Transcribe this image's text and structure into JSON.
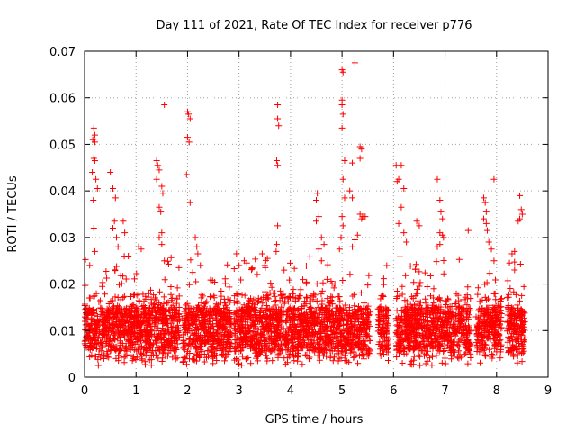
{
  "chart_data": {
    "type": "scatter",
    "title": "Day 111 of 2021, Rate Of TEC Index for receiver p776",
    "xlabel": "GPS time / hours",
    "ylabel": "ROTI / TECUs",
    "xlim": [
      0,
      9
    ],
    "ylim": [
      0,
      0.07
    ],
    "xticks": [
      0,
      1,
      2,
      3,
      4,
      5,
      6,
      7,
      8,
      9
    ],
    "yticks": [
      0,
      0.01,
      0.02,
      0.03,
      0.04,
      0.05,
      0.06,
      0.07
    ],
    "xtick_labels": [
      "0",
      "1",
      "2",
      "3",
      "4",
      "5",
      "6",
      "7",
      "8",
      "9"
    ],
    "ytick_labels": [
      "0",
      "0.01",
      "0.02",
      "0.03",
      "0.04",
      "0.05",
      "0.06",
      "0.07"
    ],
    "grid": true,
    "marker": "+",
    "series": [
      {
        "name": "ROTI",
        "color": "#ff0000",
        "segments": [
          [
            0.0,
            1.85
          ],
          [
            1.9,
            2.85
          ],
          [
            2.9,
            5.55
          ],
          [
            5.7,
            5.9
          ],
          [
            6.05,
            7.5
          ],
          [
            7.6,
            8.1
          ],
          [
            8.2,
            8.55
          ]
        ],
        "outliers": [
          [
            0.18,
            0.0535
          ],
          [
            0.2,
            0.052
          ],
          [
            0.16,
            0.051
          ],
          [
            0.2,
            0.0505
          ],
          [
            0.18,
            0.047
          ],
          [
            0.2,
            0.0465
          ],
          [
            0.15,
            0.044
          ],
          [
            0.22,
            0.0425
          ],
          [
            0.25,
            0.0405
          ],
          [
            0.17,
            0.038
          ],
          [
            0.18,
            0.032
          ],
          [
            0.2,
            0.027
          ],
          [
            0.1,
            0.024
          ],
          [
            0.5,
            0.044
          ],
          [
            0.55,
            0.0405
          ],
          [
            0.6,
            0.0385
          ],
          [
            0.58,
            0.0335
          ],
          [
            0.55,
            0.032
          ],
          [
            0.62,
            0.03
          ],
          [
            0.65,
            0.028
          ],
          [
            0.75,
            0.0335
          ],
          [
            0.78,
            0.031
          ],
          [
            0.85,
            0.026
          ],
          [
            1.05,
            0.028
          ],
          [
            1.1,
            0.0275
          ],
          [
            1.4,
            0.0465
          ],
          [
            1.42,
            0.0455
          ],
          [
            1.45,
            0.0445
          ],
          [
            1.4,
            0.0425
          ],
          [
            1.5,
            0.041
          ],
          [
            1.52,
            0.0395
          ],
          [
            1.45,
            0.0365
          ],
          [
            1.48,
            0.0355
          ],
          [
            1.5,
            0.031
          ],
          [
            1.45,
            0.03
          ],
          [
            1.55,
            0.0585
          ],
          [
            1.5,
            0.0285
          ],
          [
            1.55,
            0.025
          ],
          [
            2.0,
            0.057
          ],
          [
            2.02,
            0.0565
          ],
          [
            2.05,
            0.0555
          ],
          [
            2.0,
            0.0515
          ],
          [
            2.03,
            0.0505
          ],
          [
            1.98,
            0.0435
          ],
          [
            2.05,
            0.0375
          ],
          [
            2.15,
            0.03
          ],
          [
            2.18,
            0.028
          ],
          [
            2.2,
            0.0265
          ],
          [
            2.25,
            0.024
          ],
          [
            2.1,
            0.0225
          ],
          [
            2.95,
            0.0265
          ],
          [
            3.1,
            0.025
          ],
          [
            3.15,
            0.0245
          ],
          [
            3.0,
            0.024
          ],
          [
            3.45,
            0.0265
          ],
          [
            3.55,
            0.0255
          ],
          [
            3.5,
            0.024
          ],
          [
            3.75,
            0.0585
          ],
          [
            3.75,
            0.0555
          ],
          [
            3.77,
            0.054
          ],
          [
            3.73,
            0.0465
          ],
          [
            3.75,
            0.0455
          ],
          [
            3.75,
            0.0325
          ],
          [
            3.73,
            0.0285
          ],
          [
            3.72,
            0.027
          ],
          [
            4.5,
            0.038
          ],
          [
            4.52,
            0.0395
          ],
          [
            4.55,
            0.0345
          ],
          [
            4.5,
            0.0335
          ],
          [
            4.6,
            0.03
          ],
          [
            4.65,
            0.0285
          ],
          [
            4.55,
            0.0275
          ],
          [
            4.6,
            0.025
          ],
          [
            4.95,
            0.0275
          ],
          [
            5.0,
            0.066
          ],
          [
            5.02,
            0.0655
          ],
          [
            5.0,
            0.0595
          ],
          [
            5.0,
            0.0585
          ],
          [
            5.02,
            0.0565
          ],
          [
            5.0,
            0.0535
          ],
          [
            5.05,
            0.0465
          ],
          [
            5.02,
            0.0425
          ],
          [
            5.05,
            0.0385
          ],
          [
            5.0,
            0.0345
          ],
          [
            5.02,
            0.0325
          ],
          [
            4.98,
            0.03
          ],
          [
            5.25,
            0.0675
          ],
          [
            5.2,
            0.046
          ],
          [
            5.15,
            0.04
          ],
          [
            5.2,
            0.0385
          ],
          [
            5.35,
            0.0495
          ],
          [
            5.38,
            0.049
          ],
          [
            5.35,
            0.047
          ],
          [
            5.35,
            0.035
          ],
          [
            5.4,
            0.0345
          ],
          [
            5.45,
            0.0345
          ],
          [
            5.38,
            0.034
          ],
          [
            5.3,
            0.0305
          ],
          [
            5.25,
            0.0295
          ],
          [
            5.2,
            0.028
          ],
          [
            6.05,
            0.0455
          ],
          [
            6.1,
            0.0425
          ],
          [
            6.07,
            0.042
          ],
          [
            6.15,
            0.0455
          ],
          [
            6.2,
            0.0405
          ],
          [
            6.15,
            0.0365
          ],
          [
            6.1,
            0.033
          ],
          [
            6.2,
            0.031
          ],
          [
            6.25,
            0.029
          ],
          [
            6.45,
            0.0335
          ],
          [
            6.5,
            0.0325
          ],
          [
            6.85,
            0.0425
          ],
          [
            6.9,
            0.038
          ],
          [
            6.92,
            0.0355
          ],
          [
            6.95,
            0.034
          ],
          [
            6.9,
            0.031
          ],
          [
            6.95,
            0.0305
          ],
          [
            6.97,
            0.03
          ],
          [
            6.85,
            0.028
          ],
          [
            6.9,
            0.0285
          ],
          [
            7.45,
            0.0315
          ],
          [
            7.75,
            0.0385
          ],
          [
            7.78,
            0.0375
          ],
          [
            7.8,
            0.0355
          ],
          [
            7.75,
            0.034
          ],
          [
            7.8,
            0.033
          ],
          [
            7.82,
            0.0315
          ],
          [
            7.85,
            0.029
          ],
          [
            7.9,
            0.0275
          ],
          [
            7.95,
            0.025
          ],
          [
            7.95,
            0.0425
          ],
          [
            8.45,
            0.039
          ],
          [
            8.48,
            0.036
          ],
          [
            8.5,
            0.035
          ],
          [
            8.45,
            0.034
          ],
          [
            8.42,
            0.0335
          ],
          [
            8.35,
            0.027
          ],
          [
            8.3,
            0.0265
          ],
          [
            8.25,
            0.0245
          ],
          [
            8.35,
            0.023
          ]
        ]
      }
    ]
  }
}
